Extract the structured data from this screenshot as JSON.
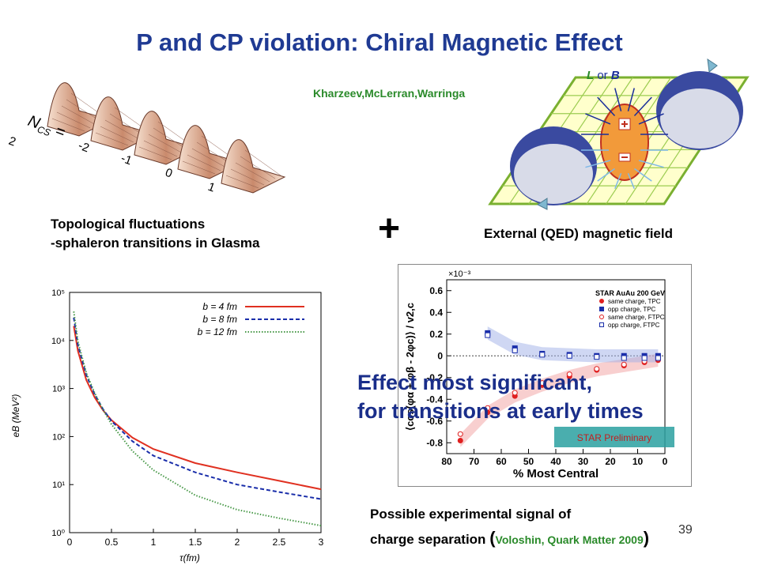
{
  "slide": {
    "title": "P and CP violation: Chiral Magnetic Effect",
    "citation_top": "Kharzeev,McLerran,Warringa",
    "topology_caption_line1": "Topological fluctuations",
    "topology_caption_line2": "-sphaleron transitions in Glasma",
    "plus_sign": "+",
    "field_caption": "External (QED) magnetic field",
    "lorb_label": {
      "L": "L",
      "or": " or ",
      "B": "B"
    },
    "effect_line1": "Effect most significant,",
    "effect_line2": "for transitions at early times",
    "signal_line1": "Possible experimental signal of",
    "signal_line2": "charge separation",
    "signal_ref": "Voloshin, Quark Matter 2009",
    "paren_open": "(",
    "paren_close": ")",
    "slide_number": "39"
  },
  "sphaleron": {
    "ncs_label": "N",
    "ncs_sub": "CS",
    "ncs_eq": " = ",
    "ticks": [
      "2",
      "-2",
      "-1",
      "0",
      "1"
    ]
  },
  "chart_data": [
    {
      "type": "line",
      "xlabel": "τ(fm)",
      "ylabel": "eB (MeV²)",
      "yscale": "log",
      "xlim": [
        0,
        3
      ],
      "ylim": [
        1,
        100000
      ],
      "xticks": [
        "0",
        "0.5",
        "1",
        "1.5",
        "2",
        "2.5",
        "3"
      ],
      "yticks": [
        "10⁰",
        "10¹",
        "10²",
        "10³",
        "10⁴",
        "10⁵"
      ],
      "legend_position": "top-right",
      "series": [
        {
          "name": "b = 4 fm",
          "color": "#e03020",
          "style": "solid",
          "x": [
            0.05,
            0.1,
            0.2,
            0.3,
            0.4,
            0.5,
            0.75,
            1.0,
            1.5,
            2.0,
            2.5,
            3.0
          ],
          "y": [
            20000,
            6000,
            1500,
            650,
            350,
            220,
            95,
            55,
            28,
            18,
            12,
            8
          ]
        },
        {
          "name": "b = 8 fm",
          "color": "#1a2eaa",
          "style": "dashed",
          "x": [
            0.05,
            0.1,
            0.2,
            0.3,
            0.4,
            0.5,
            0.75,
            1.0,
            1.5,
            2.0,
            2.5,
            3.0
          ],
          "y": [
            30000,
            8000,
            1900,
            750,
            370,
            210,
            80,
            40,
            18,
            10,
            7,
            5
          ]
        },
        {
          "name": "b = 12 fm",
          "color": "#4a9a4a",
          "style": "dotted",
          "x": [
            0.05,
            0.1,
            0.2,
            0.3,
            0.4,
            0.5,
            0.75,
            1.0,
            1.5,
            2.0,
            2.5,
            3.0
          ],
          "y": [
            40000,
            9500,
            2100,
            800,
            360,
            180,
            50,
            20,
            6,
            3,
            2,
            1.4
          ]
        }
      ]
    },
    {
      "type": "scatter",
      "xlabel": "% Most Central",
      "ylabel": "⟨cos(φα + φβ - 2φc)⟩ / v2,c",
      "y_multiplier": "×10⁻³",
      "xlim": [
        80,
        0
      ],
      "ylim": [
        -0.9,
        0.7
      ],
      "xticks": [
        "80",
        "70",
        "60",
        "50",
        "40",
        "30",
        "20",
        "10",
        "0"
      ],
      "yticks": [
        "0.6",
        "0.4",
        "0.2",
        "0",
        "-0.2",
        "-0.4",
        "-0.6",
        "-0.8"
      ],
      "legend_title": "STAR  AuAu 200 GeV",
      "preliminary_label": "STAR Preliminary",
      "series": [
        {
          "name": "same charge, TPC",
          "color": "#e02020",
          "marker": "filled-circle",
          "x": [
            75,
            65,
            55,
            45,
            35,
            25,
            15,
            7.5,
            2.5
          ],
          "y": [
            -0.78,
            -0.52,
            -0.37,
            -0.27,
            -0.19,
            -0.13,
            -0.09,
            -0.06,
            -0.04
          ]
        },
        {
          "name": "opp charge, TPC",
          "color": "#1a2eaa",
          "marker": "filled-square",
          "x": [
            65,
            55,
            45,
            35,
            25,
            15,
            7.5,
            2.5
          ],
          "y": [
            0.21,
            0.07,
            0.02,
            0.01,
            0.0,
            0.0,
            0.0,
            0.0
          ]
        },
        {
          "name": "same charge, FTPC",
          "color": "#e02020",
          "marker": "open-circle",
          "x": [
            75,
            65,
            55,
            45,
            35,
            25,
            15,
            7.5,
            2.5
          ],
          "y": [
            -0.72,
            -0.48,
            -0.34,
            -0.25,
            -0.17,
            -0.12,
            -0.08,
            -0.05,
            -0.03
          ]
        },
        {
          "name": "opp charge, FTPC",
          "color": "#1a2eaa",
          "marker": "open-square",
          "x": [
            65,
            55,
            45,
            35,
            25,
            15,
            7.5,
            2.5
          ],
          "y": [
            0.19,
            0.05,
            0.01,
            0.0,
            -0.01,
            -0.02,
            -0.02,
            -0.02
          ]
        }
      ]
    }
  ]
}
